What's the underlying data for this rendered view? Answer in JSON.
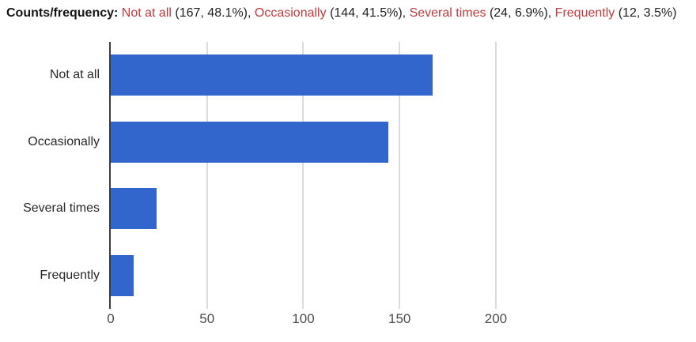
{
  "header": {
    "prefix": "Counts/frequency:",
    "segments": [
      {
        "label": "Not at all",
        "stats": "(167, 48.1%),"
      },
      {
        "label": "Occasionally",
        "stats": "(144, 41.5%),"
      },
      {
        "label": "Several times",
        "stats": "(24, 6.9%),"
      },
      {
        "label": "Frequently",
        "stats": "(12, 3.5%)"
      }
    ],
    "label_color": "#bf3a3c",
    "text_color": "#1f1f1f"
  },
  "chart_data": {
    "type": "bar",
    "orientation": "horizontal",
    "title": "Counts/frequency",
    "categories": [
      "Not at all",
      "Occasionally",
      "Several times",
      "Frequently"
    ],
    "values": [
      167,
      144,
      24,
      12
    ],
    "percentages": [
      48.1,
      41.5,
      6.9,
      3.5
    ],
    "xlabel": "",
    "ylabel": "",
    "xticks": [
      0,
      50,
      100,
      150,
      200
    ],
    "xlim": [
      0,
      230
    ],
    "grid": true,
    "legend": "none",
    "bar_color": "#3366cc",
    "axis_color": "#3c3c3c",
    "gridline_color": "#dcdcdc"
  }
}
